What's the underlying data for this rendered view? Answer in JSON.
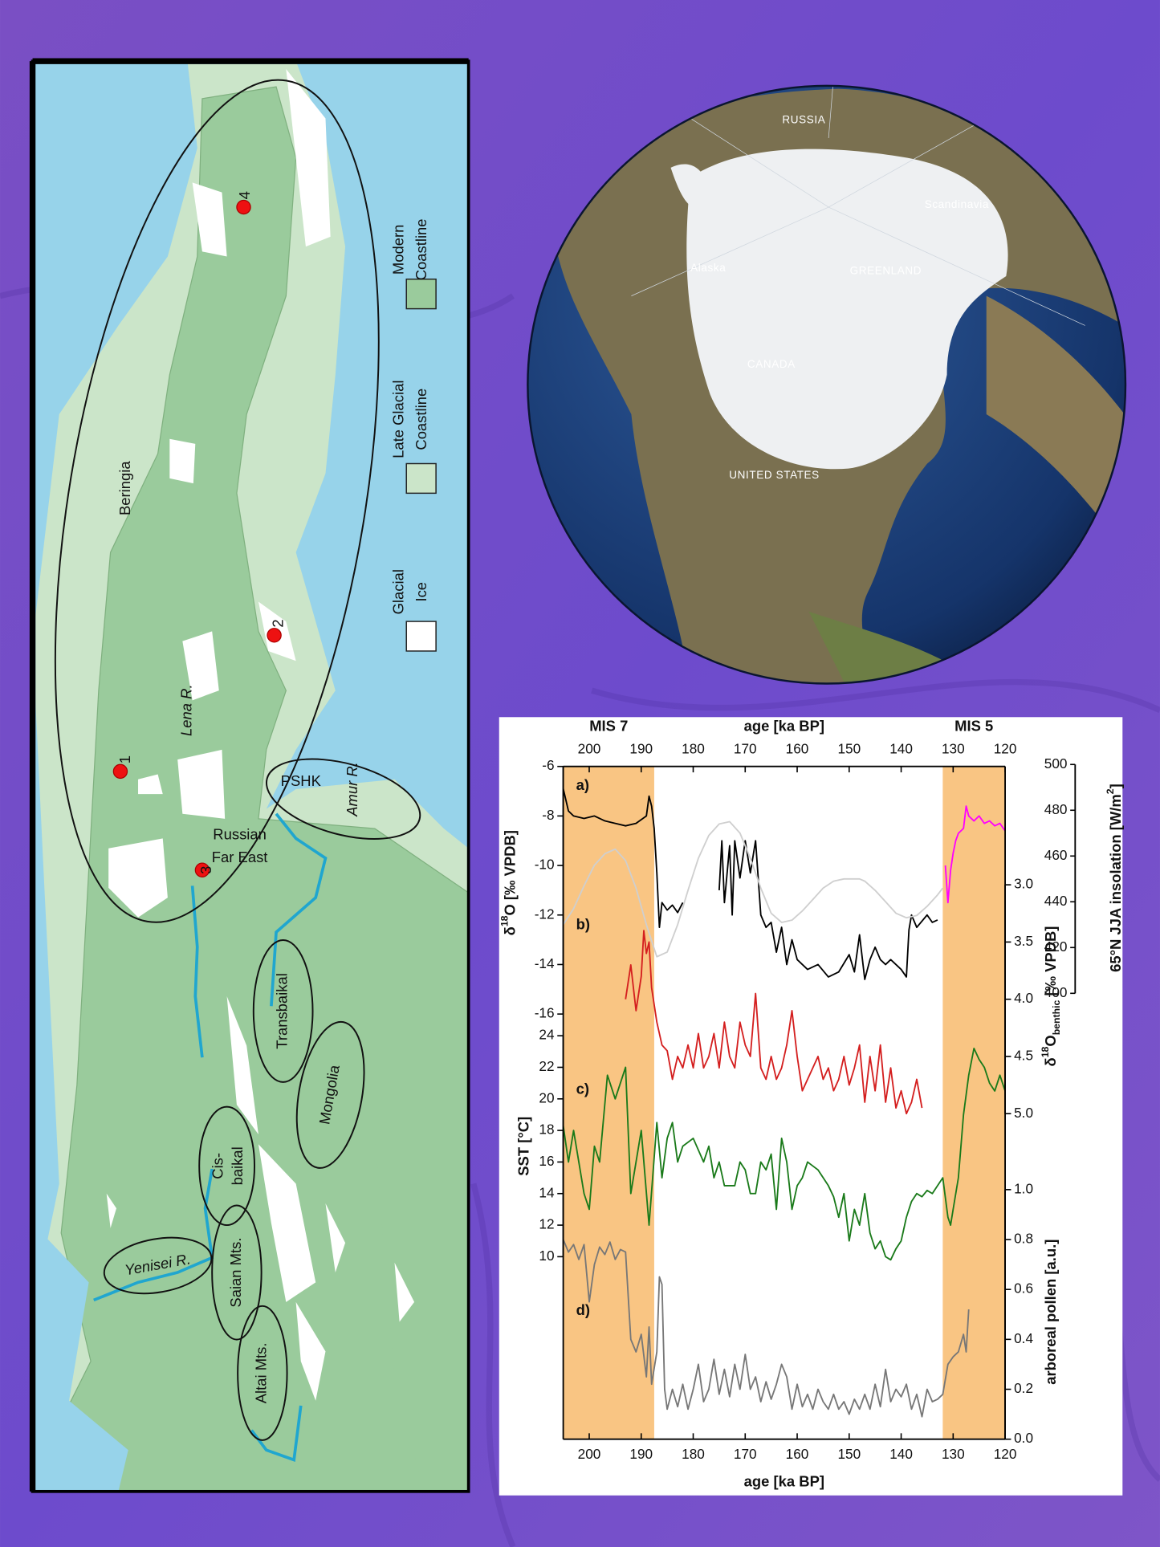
{
  "map": {
    "region_labels": [
      "Beringia",
      "Lena R.",
      "Amur R.",
      "PSHK",
      "Transbaikal",
      "Mongolia",
      "Yenisei R.",
      "Saian Mts.",
      "Altai Mts."
    ],
    "russian_far_east": [
      "Russian",
      "Far East"
    ],
    "cisbaikal": [
      "Cis-",
      "baikal"
    ],
    "sites": [
      "1",
      "2",
      "3",
      "4"
    ],
    "legend": [
      [
        "Modern",
        "Coastline"
      ],
      [
        "Late Glacial",
        "Coastline"
      ],
      [
        "Glacial",
        "Ice"
      ]
    ]
  },
  "globe": {
    "labels": [
      "RUSSIA",
      "Scandinavia",
      "Alaska",
      "GREENLAND",
      "CANADA",
      "UNITED STATES"
    ]
  },
  "chart_data": {
    "type": "line",
    "xlabel": "age [ka BP]",
    "xlim": [
      205,
      120
    ],
    "xticks": [
      200,
      190,
      180,
      170,
      160,
      150,
      140,
      130,
      120
    ],
    "shaded_regions": [
      {
        "label": "MIS 7",
        "xlim": [
          205,
          187.5
        ],
        "color": "#f9c583"
      },
      {
        "label": "MIS 5",
        "xlim": [
          132,
          120
        ],
        "color": "#f9c583"
      }
    ],
    "panel_labels": [
      "a)",
      "b)",
      "c)",
      "d)"
    ],
    "axes": [
      {
        "side": "left",
        "label": [
          {
            "text": "δ"
          },
          {
            "text": "18",
            "sup": true
          },
          {
            "text": "O [‰ VPDB]"
          }
        ],
        "ylim": [
          -16,
          -6
        ],
        "yticks": [
          -6,
          -8,
          -10,
          -12,
          -14,
          -16
        ],
        "series": [
          {
            "color": "#000000",
            "x": [
              205,
              204,
              203,
              201,
              199,
              197,
              195,
              193,
              191,
              189,
              188.5,
              188,
              187.5,
              187,
              186.5,
              186,
              185,
              184,
              183,
              182,
              178,
              175,
              174.5,
              174,
              173,
              172.5,
              172,
              171,
              170,
              169,
              168,
              167,
              166,
              165,
              164,
              163,
              162,
              161,
              160,
              158,
              156,
              154,
              152,
              150,
              149,
              148,
              147,
              146,
              145,
              144,
              143,
              142,
              140,
              139,
              138.5,
              138,
              137,
              135,
              134,
              133
            ],
            "values": [
              -6.9,
              -7.8,
              -8.0,
              -8.1,
              -8.0,
              -8.2,
              -8.3,
              -8.4,
              -8.3,
              -8.0,
              -7.2,
              -7.6,
              -8.5,
              -10.3,
              -12.5,
              -11.5,
              -11.8,
              -11.6,
              -11.9,
              -11.5,
              null,
              -11.0,
              -9.0,
              -11.5,
              -9.2,
              -12.0,
              -9.0,
              -10.5,
              -9.0,
              -10.3,
              -9.0,
              -12.0,
              -12.5,
              -12.3,
              -13.5,
              -12.5,
              -14.0,
              -13.0,
              -13.8,
              -14.2,
              -14.0,
              -14.5,
              -14.3,
              -13.6,
              -14.3,
              -12.8,
              -14.6,
              -13.8,
              -13.3,
              -13.8,
              -14.0,
              -13.8,
              -14.2,
              -14.5,
              -12.6,
              -12.0,
              -12.5,
              -12.0,
              -12.3,
              -12.2
            ]
          },
          {
            "color": "#ff00ff",
            "x": [
              131.5,
              131,
              130.5,
              130,
              129.5,
              129,
              128,
              127.5,
              127,
              126,
              125,
              124,
              123,
              122,
              121,
              120
            ],
            "values": [
              -10.0,
              -11.5,
              -10.2,
              -9.5,
              -9.0,
              -8.7,
              -8.5,
              -7.6,
              -8.0,
              -8.2,
              -8.0,
              -8.3,
              -8.2,
              -8.4,
              -8.3,
              -8.6
            ]
          }
        ]
      },
      {
        "side": "left",
        "label": [
          {
            "text": "SST [°C]"
          }
        ],
        "ylim": [
          10,
          24
        ],
        "yticks": [
          10,
          12,
          14,
          16,
          18,
          20,
          22,
          24
        ],
        "series": [
          {
            "color": "#1a7a1a",
            "x": [
              205,
              204,
              203,
              202,
              201,
              200,
              199,
              198,
              196.5,
              195,
              193,
              192,
              190,
              188.5,
              187,
              186,
              185,
              184,
              183,
              182,
              180,
              178,
              177,
              176,
              175,
              174,
              172,
              171,
              170,
              169,
              168,
              167,
              166,
              165,
              164,
              163,
              162,
              161,
              160,
              159,
              158,
              156,
              154,
              153,
              152,
              151,
              150,
              149,
              148,
              147,
              146,
              145,
              144,
              143,
              142,
              141,
              140,
              139,
              138,
              137,
              136,
              135,
              134,
              133,
              132,
              131,
              130.5,
              130,
              129,
              128,
              127,
              126,
              125,
              124,
              123,
              122,
              121,
              120
            ],
            "values": [
              18.3,
              16,
              18,
              16,
              14,
              13,
              17,
              16,
              21.5,
              20,
              22,
              14,
              18,
              12,
              18.5,
              15,
              17.5,
              18.5,
              16,
              17,
              17.5,
              16,
              17,
              15,
              16,
              14.5,
              14.5,
              16,
              15.5,
              14,
              14,
              16,
              15.5,
              16.5,
              13,
              17.5,
              16,
              13,
              14.5,
              15,
              16,
              15.5,
              14.5,
              13.8,
              12.5,
              14,
              11,
              13,
              12,
              14,
              11.5,
              10.5,
              11,
              10,
              9.8,
              10.5,
              11,
              12.5,
              13.5,
              14,
              13.8,
              14.2,
              14,
              14.5,
              15,
              12.5,
              12,
              13,
              15,
              19,
              21.5,
              23.2,
              22.5,
              22,
              21,
              20.5,
              21.5,
              20.5
            ]
          }
        ]
      },
      {
        "side": "right-outer",
        "label": [
          {
            "text": "65°N JJA insolation [W/m"
          },
          {
            "text": "2",
            "sup": true
          },
          {
            "text": "]"
          }
        ],
        "ylim": [
          400,
          500
        ],
        "yticks": [
          400,
          420,
          440,
          460,
          480,
          500
        ],
        "series": [
          {
            "color": "#cfcfcf",
            "x": [
              205,
              203,
              201,
              199,
              197,
              195,
              193,
              191,
              189,
              187,
              185,
              183,
              181,
              179,
              177,
              175,
              173,
              171,
              169,
              167,
              165,
              163,
              161,
              159,
              157,
              155,
              153,
              151,
              149,
              148,
              147,
              145,
              143,
              141,
              139,
              137,
              135,
              133,
              132
            ],
            "values": [
              430,
              437,
              447,
              456,
              461,
              463,
              458,
              446,
              430,
              416,
              418,
              430,
              445,
              459,
              469,
              474,
              475,
              470,
              459,
              446,
              435,
              431,
              432,
              436,
              441,
              446,
              449,
              450,
              450,
              450,
              449,
              445,
              440,
              435,
              433,
              434,
              438,
              443,
              446
            ]
          }
        ]
      },
      {
        "side": "right",
        "reversed": true,
        "label": [
          {
            "text": "δ"
          },
          {
            "text": "18",
            "sup": true
          },
          {
            "text": "O"
          },
          {
            "text": "benthic",
            "sub": true
          },
          {
            "text": " [‰ VPDB]"
          }
        ],
        "ylim": [
          3,
          5
        ],
        "yticks": [
          {
            "value": 3,
            "label": "3.0"
          },
          3.5,
          {
            "value": 4,
            "label": "4.0"
          },
          4.5,
          {
            "value": 5,
            "label": "5.0"
          }
        ],
        "series": [
          {
            "color": "#d41f1f",
            "x": [
              193,
              192,
              191,
              190,
              189.5,
              189,
              188.5,
              188,
              187,
              186,
              185,
              184,
              183,
              182,
              181,
              180,
              179,
              178,
              177,
              176,
              175,
              174,
              173,
              172,
              171,
              170,
              169,
              168,
              167,
              166,
              165,
              164,
              163,
              162,
              161,
              160,
              159,
              158,
              157,
              156,
              155,
              154,
              153,
              152,
              151,
              150,
              149,
              148,
              147,
              146,
              145,
              144,
              143,
              142,
              141,
              140,
              139,
              138,
              137,
              136
            ],
            "values": [
              4.0,
              3.7,
              4.1,
              3.8,
              3.4,
              3.6,
              3.5,
              3.9,
              4.2,
              4.4,
              4.45,
              4.7,
              4.5,
              4.6,
              4.4,
              4.6,
              4.3,
              4.6,
              4.5,
              4.3,
              4.6,
              4.2,
              4.5,
              4.6,
              4.2,
              4.4,
              4.5,
              3.95,
              4.6,
              4.7,
              4.5,
              4.7,
              4.6,
              4.4,
              4.1,
              4.5,
              4.8,
              4.7,
              4.6,
              4.5,
              4.7,
              4.6,
              4.8,
              4.7,
              4.5,
              4.75,
              4.6,
              4.4,
              4.9,
              4.5,
              4.8,
              4.4,
              4.9,
              4.6,
              4.95,
              4.8,
              5.0,
              4.9,
              4.7,
              4.95
            ]
          }
        ]
      },
      {
        "side": "right",
        "label": [
          {
            "text": "arboreal pollen [a.u.]"
          }
        ],
        "ylim": [
          0,
          1
        ],
        "yticks": [
          {
            "value": 0,
            "label": "0.0"
          },
          0.2,
          0.4,
          0.6,
          0.8,
          {
            "value": 1,
            "label": "1.0"
          }
        ],
        "series": [
          {
            "color": "#777777",
            "x": [
              205,
              204,
              203,
              202,
              201,
              200,
              199,
              198,
              197,
              196,
              195,
              194,
              193,
              192,
              191,
              190,
              189,
              188.5,
              188,
              187,
              186.5,
              186,
              185.5,
              185,
              184,
              183,
              182,
              181,
              180,
              179,
              178,
              177,
              176,
              175,
              174,
              173,
              172,
              171,
              170,
              169,
              168,
              167,
              166,
              165,
              164,
              163,
              162,
              161,
              160,
              159,
              158,
              157,
              156,
              155,
              154,
              153,
              152,
              151,
              150,
              149,
              148,
              147,
              146,
              145,
              144,
              143,
              142,
              141,
              140,
              139,
              138,
              137,
              136,
              135,
              134,
              133,
              132,
              131,
              130,
              129,
              128,
              127.5,
              127
            ],
            "values": [
              0.8,
              0.75,
              0.78,
              0.72,
              0.78,
              0.55,
              0.7,
              0.77,
              0.74,
              0.79,
              0.72,
              0.76,
              0.75,
              0.4,
              0.35,
              0.42,
              0.25,
              0.45,
              0.22,
              0.35,
              0.65,
              0.62,
              0.2,
              0.12,
              0.2,
              0.13,
              0.22,
              0.12,
              0.2,
              0.3,
              0.15,
              0.2,
              0.32,
              0.18,
              0.28,
              0.17,
              0.3,
              0.2,
              0.34,
              0.2,
              0.25,
              0.15,
              0.23,
              0.16,
              0.22,
              0.3,
              0.25,
              0.12,
              0.22,
              0.13,
              0.18,
              0.12,
              0.2,
              0.15,
              0.12,
              0.18,
              0.12,
              0.15,
              0.1,
              0.16,
              0.12,
              0.18,
              0.12,
              0.22,
              0.13,
              0.28,
              0.15,
              0.2,
              0.17,
              0.22,
              0.12,
              0.18,
              0.09,
              0.2,
              0.15,
              0.16,
              0.18,
              0.3,
              0.33,
              0.35,
              0.42,
              0.35,
              0.52
            ]
          }
        ]
      }
    ]
  }
}
